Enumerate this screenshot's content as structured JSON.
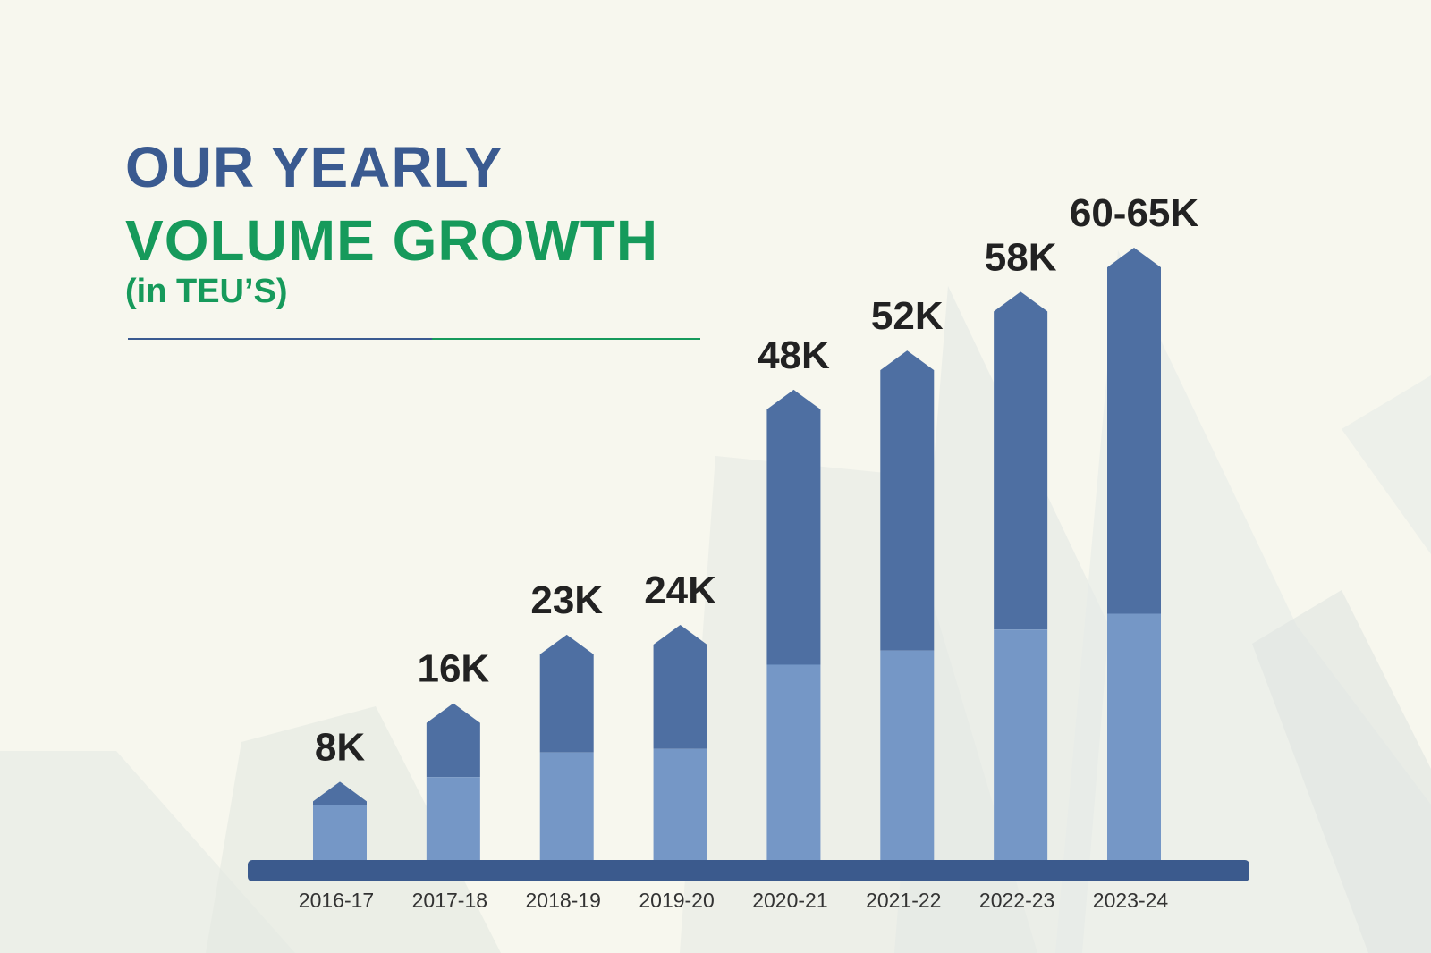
{
  "heading": {
    "line1": "OUR YEARLY",
    "line2": "VOLUME GROWTH",
    "unit": "(in TEU’S)"
  },
  "colors": {
    "background": "#f7f7ee",
    "title_blue": "#3a5a90",
    "title_green": "#169a5b",
    "bar_dark": "#4e6fa2",
    "bar_light": "#7597c6",
    "baseline": "#3b5a8d",
    "value_text": "#222222",
    "tick_text": "#333333"
  },
  "chart_data": {
    "type": "bar",
    "categories": [
      "2016-17",
      "2017-18",
      "2018-19",
      "2019-20",
      "2020-21",
      "2021-22",
      "2022-23",
      "2023-24"
    ],
    "values": [
      8,
      16,
      23,
      24,
      48,
      52,
      58,
      62.5
    ],
    "data_labels": [
      "8K",
      "16K",
      "23K",
      "24K",
      "48K",
      "52K",
      "58K",
      "60-65K"
    ],
    "title": "OUR YEARLY VOLUME GROWTH",
    "subtitle": "(in TEU’S)",
    "xlabel": "",
    "ylabel": "",
    "ylim": [
      0,
      62.5
    ],
    "grid": false,
    "legend": "none"
  }
}
